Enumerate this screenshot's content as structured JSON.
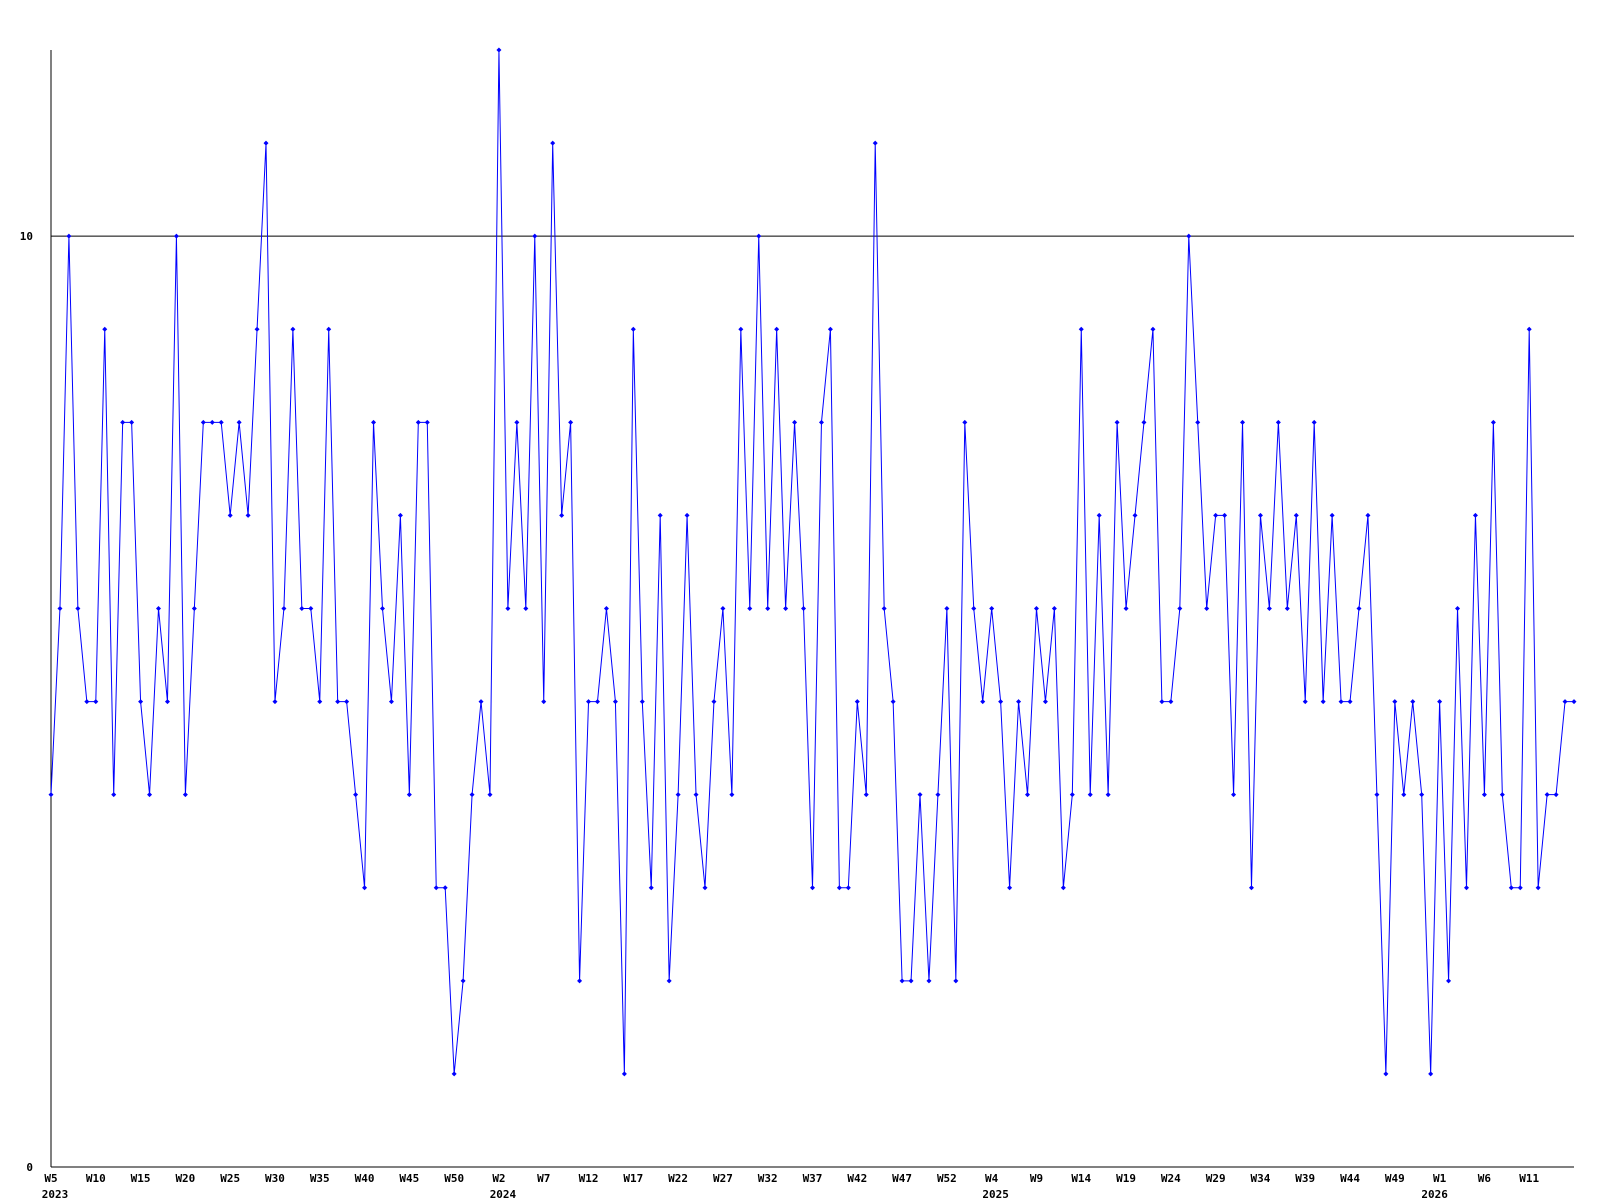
{
  "chart_data": {
    "type": "line",
    "categories": [
      "W5",
      null,
      null,
      null,
      null,
      "W10",
      null,
      null,
      null,
      null,
      "W15",
      null,
      null,
      null,
      null,
      "W20",
      null,
      null,
      null,
      null,
      "W25",
      null,
      null,
      null,
      null,
      "W30",
      null,
      null,
      null,
      null,
      "W35",
      null,
      null,
      null,
      null,
      "W40",
      null,
      null,
      null,
      null,
      "W45",
      null,
      null,
      null,
      null,
      "W50",
      null,
      null,
      null,
      null,
      "W2",
      null,
      null,
      null,
      null,
      "W7",
      null,
      null,
      null,
      null,
      "W12",
      null,
      null,
      null,
      null,
      "W17",
      null,
      null,
      null,
      null,
      "W22",
      null,
      null,
      null,
      null,
      "W27",
      null,
      null,
      null,
      null,
      "W32",
      null,
      null,
      null,
      null,
      "W37",
      null,
      null,
      null,
      null,
      "W42",
      null,
      null,
      null,
      null,
      "W47",
      null,
      null,
      null,
      null,
      "W52",
      null,
      null,
      null,
      null,
      "W4",
      null,
      null,
      null,
      null,
      "W9",
      null,
      null,
      null,
      null,
      "W14",
      null,
      null,
      null,
      null,
      "W19",
      null,
      null,
      null,
      null,
      "W24",
      null,
      null,
      null,
      null,
      "W29",
      null,
      null,
      null,
      null,
      "W34",
      null,
      null,
      null,
      null,
      "W39",
      null,
      null,
      null,
      null,
      "W44",
      null,
      null,
      null,
      null,
      "W49",
      null,
      null,
      null,
      null,
      "W1",
      null,
      null,
      null,
      null,
      "W6",
      null,
      null,
      null,
      null,
      "W11",
      null,
      null,
      null,
      null,
      null
    ],
    "years": [
      "2023",
      null,
      null,
      null,
      null,
      null,
      null,
      null,
      null,
      null,
      null,
      null,
      null,
      null,
      null,
      null,
      null,
      null,
      null,
      null,
      null,
      null,
      null,
      null,
      null,
      null,
      null,
      null,
      null,
      null,
      null,
      null,
      null,
      null,
      null,
      null,
      null,
      null,
      null,
      null,
      null,
      null,
      null,
      null,
      null,
      null,
      null,
      null,
      null,
      null,
      "2024",
      null,
      null,
      null,
      null,
      null,
      null,
      null,
      null,
      null,
      null,
      null,
      null,
      null,
      null,
      null,
      null,
      null,
      null,
      null,
      null,
      null,
      null,
      null,
      null,
      null,
      null,
      null,
      null,
      null,
      null,
      null,
      null,
      null,
      null,
      null,
      null,
      null,
      null,
      null,
      null,
      null,
      null,
      null,
      null,
      null,
      null,
      null,
      null,
      null,
      null,
      null,
      null,
      null,
      null,
      "2025",
      null,
      null,
      null,
      null,
      null,
      null,
      null,
      null,
      null,
      null,
      null,
      null,
      null,
      null,
      null,
      null,
      null,
      null,
      null,
      null,
      null,
      null,
      null,
      null,
      null,
      null,
      null,
      null,
      null,
      null,
      null,
      null,
      null,
      null,
      null,
      null,
      null,
      null,
      null,
      null,
      null,
      null,
      null,
      null,
      null,
      null,
      null,
      null,
      "2026",
      null,
      null,
      null,
      null,
      null,
      null,
      null,
      null,
      null,
      null,
      null,
      null,
      null,
      null,
      null
    ],
    "series": [
      {
        "color": "#0000ff",
        "values": [
          4,
          6,
          10,
          6,
          5,
          5,
          9,
          4,
          8,
          8,
          5,
          4,
          6,
          5,
          10,
          4,
          6,
          8,
          8,
          8,
          7,
          8,
          7,
          9,
          11,
          5,
          6,
          9,
          6,
          6,
          5,
          9,
          5,
          5,
          4,
          3,
          8,
          6,
          5,
          7,
          4,
          8,
          8,
          3,
          3,
          1,
          2,
          4,
          5,
          4,
          12,
          6,
          8,
          6,
          10,
          5,
          11,
          7,
          8,
          2,
          5,
          5,
          6,
          5,
          1,
          9,
          5,
          3,
          7,
          2,
          4,
          7,
          4,
          3,
          5,
          6,
          4,
          9,
          6,
          10,
          6,
          9,
          6,
          8,
          6,
          3,
          8,
          9,
          3,
          3,
          5,
          4,
          11,
          6,
          5,
          2,
          2,
          4,
          2,
          4,
          6,
          2,
          8,
          6,
          5,
          6,
          5,
          3,
          5,
          4,
          6,
          5,
          6,
          3,
          4,
          9,
          4,
          7,
          4,
          8,
          6,
          7,
          8,
          9,
          5,
          5,
          6,
          10,
          8,
          6,
          7,
          7,
          4,
          8,
          3,
          7,
          6,
          8,
          6,
          7,
          5,
          8,
          5,
          7,
          5,
          5,
          6,
          7,
          4,
          1,
          5,
          4,
          5,
          4,
          1,
          5,
          2,
          6,
          3,
          7,
          4,
          8,
          4,
          3,
          3,
          9,
          3,
          4,
          4,
          5,
          5
        ]
      }
    ],
    "ylim": [
      0,
      12
    ],
    "yticks": [
      0,
      10
    ],
    "grid": true
  }
}
